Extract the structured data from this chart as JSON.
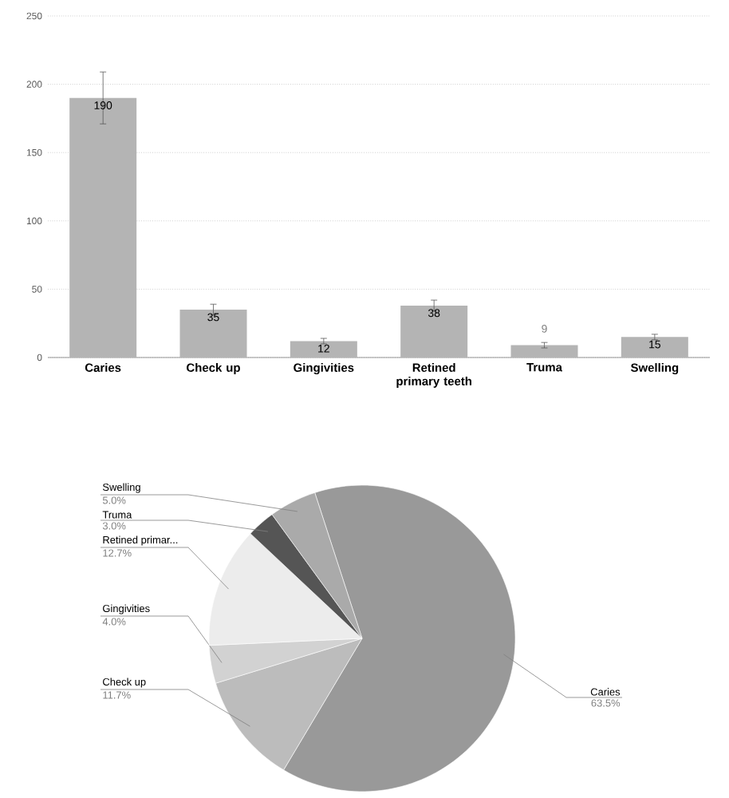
{
  "chart_data": [
    {
      "type": "bar",
      "categories": [
        "Caries",
        "Check up",
        "Gingivities",
        "Retined primary teeth",
        "Truma",
        "Swelling"
      ],
      "values": [
        190,
        35,
        12,
        38,
        9,
        15
      ],
      "errors": [
        19,
        4,
        2,
        4,
        2,
        2
      ],
      "color": "#b4b4b4",
      "value_labels": [
        "190",
        "35",
        "12",
        "38",
        "9",
        "15"
      ],
      "ylim": [
        0,
        250
      ],
      "yticks": [
        0,
        50,
        100,
        150,
        200,
        250
      ],
      "grid": "y"
    },
    {
      "type": "pie",
      "categories": [
        "Caries",
        "Check up",
        "Gingivities",
        "Retined primar...",
        "Truma",
        "Swelling"
      ],
      "values": [
        63.5,
        11.7,
        4.0,
        12.7,
        3.0,
        5.0
      ],
      "colors": [
        "#999999",
        "#bcbcbc",
        "#d2d2d2",
        "#ececec",
        "#555555",
        "#aaaaaa"
      ],
      "value_labels": [
        "63.5%",
        "11.7%",
        "4.0%",
        "12.7%",
        "3.0%",
        "5.0%"
      ]
    }
  ]
}
